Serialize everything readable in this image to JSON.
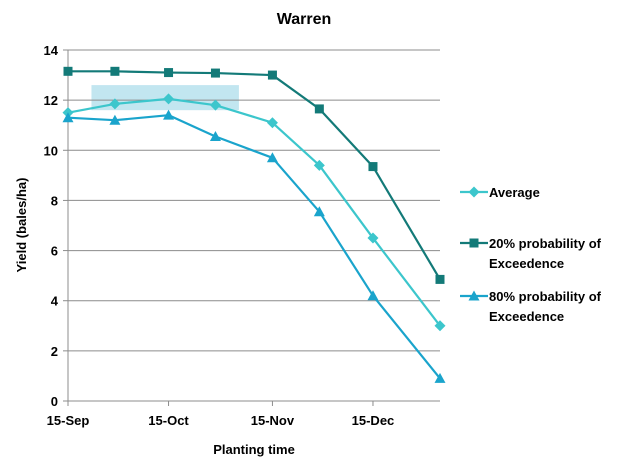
{
  "chart_data": {
    "type": "line",
    "title": "Warren",
    "xlabel": "Planting time",
    "ylabel": "Yield (bales/ha)",
    "ylim": [
      0,
      14
    ],
    "yticks": [
      0,
      2,
      4,
      6,
      8,
      10,
      12,
      14
    ],
    "xlim": [
      "2000-09-15",
      "2001-01-04"
    ],
    "xticks": [
      {
        "date": "2000-09-15",
        "label": "15-Sep"
      },
      {
        "date": "2000-10-15",
        "label": "15-Oct"
      },
      {
        "date": "2000-11-15",
        "label": "15-Nov"
      },
      {
        "date": "2000-12-15",
        "label": "15-Dec"
      }
    ],
    "x": [
      "2000-09-15",
      "2000-09-29",
      "2000-10-15",
      "2000-10-29",
      "2000-11-15",
      "2000-11-29",
      "2000-12-15",
      "2001-01-04"
    ],
    "grid": "horizontal",
    "legend_position": "right",
    "highlight_band": {
      "x": [
        "2000-09-22",
        "2000-11-05"
      ],
      "y": [
        11.6,
        12.6
      ],
      "color": "#bfe5ef"
    },
    "series": [
      {
        "name": "Average",
        "color": "#3cc6cc",
        "marker": "diamond",
        "values": [
          11.5,
          11.85,
          12.05,
          11.8,
          11.1,
          9.4,
          6.5,
          3.0
        ]
      },
      {
        "name": "20% probability of Exceedence",
        "color": "#137a78",
        "marker": "square",
        "values": [
          13.15,
          13.15,
          13.1,
          13.08,
          13.0,
          11.65,
          9.35,
          4.85
        ]
      },
      {
        "name": "80% probability of Exceedence",
        "color": "#1aa4cc",
        "marker": "triangle",
        "values": [
          11.3,
          11.2,
          11.4,
          10.55,
          9.7,
          7.55,
          4.2,
          0.9
        ]
      }
    ]
  }
}
